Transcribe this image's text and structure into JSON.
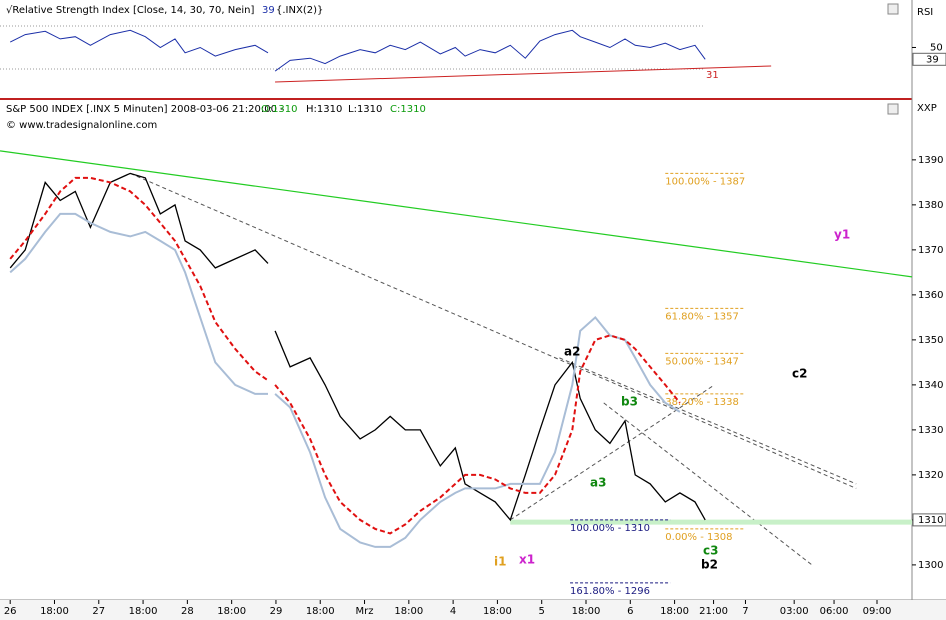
{
  "chart_data": {
    "type": "line",
    "rsi": {
      "title": "√Relative Strength Index [Close, 14, 30, 70, Nein]",
      "last": 39,
      "source": "{.INX(2)}",
      "axis_label": "RSI",
      "ylim": [
        15.1,
        77.4
      ],
      "yticks": [
        50
      ],
      "levels": [
        30,
        70
      ],
      "color": "#1b2fa8",
      "values": [
        55,
        62,
        65,
        58,
        60,
        52,
        62,
        66,
        60,
        50,
        58,
        45,
        50,
        42,
        48,
        52,
        45,
        null,
        28,
        38,
        40,
        35,
        42,
        48,
        45,
        52,
        48,
        55,
        44,
        50,
        42,
        48,
        45,
        52,
        40,
        56,
        62,
        66,
        60,
        55,
        50,
        58,
        52,
        50,
        54,
        48,
        52,
        39
      ],
      "trendline": {
        "x": [
          5.98,
          17.18
        ],
        "y": [
          17.9,
          32.8
        ],
        "color": "#cc2222",
        "label": "31"
      }
    },
    "title": "S&P 500 INDEX [.INX 5 Minuten] 2008-03-06 21:20:00 -",
    "ohlc": {
      "O": "O:1310",
      "H": "H:1310",
      "L": "L:1310",
      "C": "C:1310"
    },
    "credit": "© www.tradesignalonline.com",
    "axis_label": "XXP",
    "last_price": 1310,
    "ylim": [
      1292.2,
      1403.3
    ],
    "yticks": [
      1300,
      1310,
      1320,
      1330,
      1340,
      1350,
      1360,
      1370,
      1380,
      1390
    ],
    "xlim": [
      -0.23,
      20.36
    ],
    "xticks": [
      {
        "value": 0,
        "label": "26"
      },
      {
        "value": 1,
        "label": "18:00"
      },
      {
        "value": 2,
        "label": "27"
      },
      {
        "value": 3,
        "label": "18:00"
      },
      {
        "value": 4,
        "label": "28"
      },
      {
        "value": 5,
        "label": "18:00"
      },
      {
        "value": 6,
        "label": "29"
      },
      {
        "value": 7,
        "label": "18:00"
      },
      {
        "value": 8,
        "label": "Mrz"
      },
      {
        "value": 9,
        "label": "18:00"
      },
      {
        "value": 10,
        "label": "4"
      },
      {
        "value": 11,
        "label": "18:00"
      },
      {
        "value": 12,
        "label": "5"
      },
      {
        "value": 13,
        "label": "18:00"
      },
      {
        "value": 14,
        "label": "6"
      },
      {
        "value": 15,
        "label": "18:00"
      },
      {
        "value": 15.88,
        "label": "21:00"
      },
      {
        "value": 16.6,
        "label": "7"
      },
      {
        "value": 17.7,
        "label": "03:00"
      },
      {
        "value": 18.6,
        "label": "06:00"
      },
      {
        "value": 19.57,
        "label": "09:00"
      }
    ],
    "x": [
      0,
      0.34,
      0.79,
      1.13,
      1.47,
      1.81,
      2.26,
      2.71,
      3.05,
      3.39,
      3.72,
      3.95,
      4.29,
      4.63,
      5.08,
      5.53,
      5.82,
      5.9,
      5.98,
      6.32,
      6.77,
      7.11,
      7.45,
      7.9,
      8.24,
      8.58,
      8.92,
      9.26,
      9.71,
      10.05,
      10.27,
      10.61,
      10.95,
      11.29,
      11.63,
      11.96,
      12.3,
      12.69,
      12.87,
      13.21,
      13.54,
      13.88,
      14.11,
      14.45,
      14.79,
      15.12,
      15.46,
      15.69
    ],
    "series": [
      {
        "name": "price",
        "color": "#000000",
        "values": [
          1366,
          1370,
          1385,
          1381,
          1383,
          1375,
          1385,
          1387,
          1386,
          1378,
          1380,
          1372,
          1370,
          1366,
          1368,
          1370,
          1367,
          null,
          1352,
          1344,
          1346,
          1340,
          1333,
          1328,
          1330,
          1333,
          1330,
          1330,
          1322,
          1326,
          1318,
          1316,
          1314,
          1310,
          1320,
          1330,
          1340,
          1345,
          1337,
          1330,
          1327,
          1332,
          1320,
          1318,
          1314,
          1316,
          1314,
          1310
        ]
      },
      {
        "name": "band",
        "color": "#a9bdd6",
        "values": [
          1365,
          1368,
          1374,
          1378,
          1378,
          1376,
          1374,
          1373,
          1374,
          1372,
          1370,
          1365,
          1355,
          1345,
          1340,
          1338,
          1338,
          null,
          1338,
          1335,
          1325,
          1315,
          1308,
          1305,
          1304,
          1304,
          1306,
          1310,
          1314,
          1316,
          1317,
          1317,
          1317,
          1318,
          1318,
          1318,
          1325,
          1340,
          1352,
          1355,
          1351,
          1350,
          1346,
          1340,
          1336,
          1334,
          null,
          null
        ]
      },
      {
        "name": "ma",
        "color": "#e01010",
        "values": [
          1368,
          1372,
          1378,
          1383,
          1386,
          1386,
          1385,
          1383,
          1380,
          1376,
          1372,
          1368,
          1362,
          1354,
          1348,
          1343,
          1341,
          null,
          1340,
          1336,
          1328,
          1320,
          1314,
          1310,
          1308,
          1307,
          1309,
          1312,
          1315,
          1318,
          1320,
          1320,
          1319,
          1317,
          1316,
          1316,
          1320,
          1330,
          1343,
          1350,
          1351,
          1350,
          1348,
          1344,
          1340,
          1336,
          null,
          null
        ]
      }
    ],
    "lines": [
      {
        "x": [
          -0.23,
          20.36
        ],
        "y": [
          1392,
          1364
        ],
        "color": "#22cc22",
        "dashed": false
      },
      {
        "x": [
          2.71,
          19.1
        ],
        "y": [
          1387,
          1317
        ],
        "color": "#555555",
        "dashed": true
      },
      {
        "x": [
          12.4,
          19.1
        ],
        "y": [
          1346,
          1318
        ],
        "color": "#555555",
        "dashed": true
      },
      {
        "x": [
          13.4,
          18.1
        ],
        "y": [
          1336,
          1300
        ],
        "color": "#555555",
        "dashed": true
      },
      {
        "x": [
          11.29,
          15.9
        ],
        "y": [
          1310,
          1340
        ],
        "color": "#555555",
        "dashed": true
      },
      {
        "x": [
          11.29,
          20.36
        ],
        "y": [
          1309.5,
          1309.5
        ],
        "color": "#c8f0c8",
        "dashed": false
      }
    ],
    "fib_levels": [
      {
        "label": "100.00% - 1387",
        "value": 1387,
        "x": [
          14.79,
          16.59
        ],
        "color": "#e0a020"
      },
      {
        "label": "61.80% - 1357",
        "value": 1357,
        "x": [
          14.79,
          16.59
        ],
        "color": "#e0a020"
      },
      {
        "label": "50.00% - 1347",
        "value": 1347,
        "x": [
          14.79,
          16.59
        ],
        "color": "#e0a020"
      },
      {
        "label": "38.20% - 1338",
        "value": 1338,
        "x": [
          14.79,
          16.59
        ],
        "color": "#e0a020"
      },
      {
        "label": "0.00% - 1308",
        "value": 1308,
        "x": [
          14.79,
          16.59
        ],
        "color": "#e0a020"
      },
      {
        "label": "100.00% - 1310",
        "value": 1310,
        "x": [
          12.64,
          14.9
        ],
        "color": "#1a1a80"
      },
      {
        "label": "161.80% - 1296",
        "value": 1296,
        "x": [
          12.64,
          14.9
        ],
        "color": "#1a1a80"
      }
    ],
    "wave_labels": [
      "y1",
      "a2",
      "b3",
      "a3",
      "c3",
      "b2",
      "c2",
      "i1",
      "x1"
    ]
  }
}
